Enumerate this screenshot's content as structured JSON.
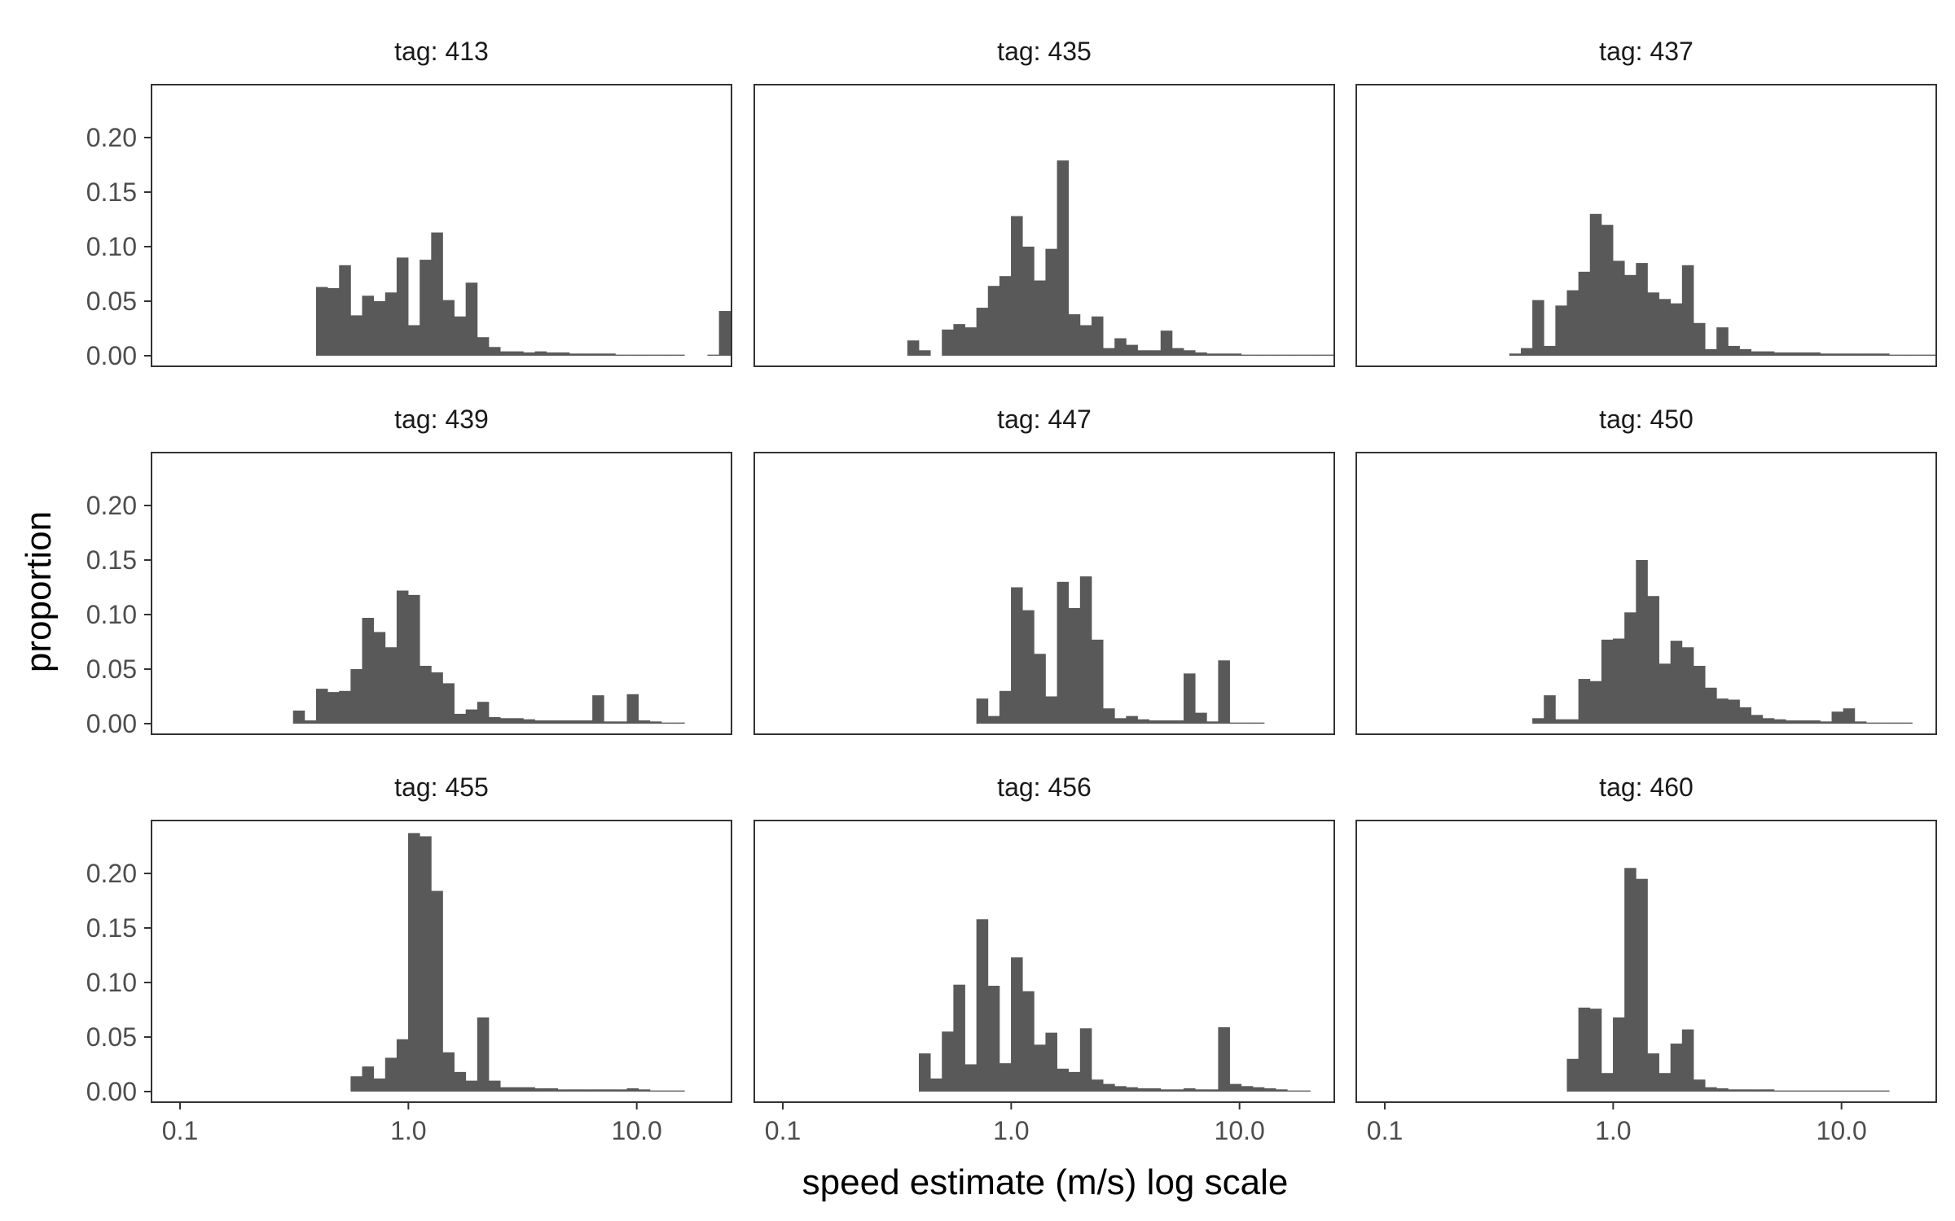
{
  "chart_data": {
    "type": "bar",
    "layout": "facet-grid-3x3",
    "xlabel": "speed estimate (m/s) log scale",
    "ylabel": "proportion",
    "x_scale": "log10",
    "xlim": [
      0.075,
      26
    ],
    "ylim": [
      0,
      0.25
    ],
    "x_ticks": [
      0.1,
      1.0,
      10.0
    ],
    "x_tick_labels": [
      "0.1",
      "1.0",
      "10.0"
    ],
    "y_ticks": [
      0,
      0.05,
      0.1,
      0.15,
      0.2
    ],
    "y_tick_labels": [
      "0.00",
      "0.05",
      "0.10",
      "0.15",
      "0.20"
    ],
    "bar_color": "#595959",
    "grid": false,
    "bin_count": 50,
    "bin_range": [
      0.0776,
      25.73
    ],
    "facets": [
      {
        "label": "tag: 413",
        "values": [
          0,
          0,
          0,
          0,
          0,
          0,
          0,
          0,
          0,
          0,
          0,
          0,
          0,
          0,
          0.063,
          0.062,
          0.083,
          0.037,
          0.055,
          0.05,
          0.058,
          0.09,
          0.028,
          0.088,
          0.113,
          0.051,
          0.036,
          0.067,
          0.017,
          0.008,
          0.004,
          0.004,
          0.003,
          0.004,
          0.003,
          0.003,
          0.002,
          0.002,
          0.002,
          0.002,
          0.001,
          0.001,
          0.001,
          0.001,
          0.001,
          0.001,
          0,
          0,
          0.001,
          0.041
        ]
      },
      {
        "label": "tag: 435",
        "values": [
          0,
          0,
          0,
          0,
          0,
          0,
          0,
          0,
          0,
          0,
          0,
          0,
          0,
          0.014,
          0.005,
          0,
          0.024,
          0.029,
          0.026,
          0.044,
          0.064,
          0.073,
          0.128,
          0.1,
          0.069,
          0.098,
          0.179,
          0.038,
          0.028,
          0.036,
          0.007,
          0.016,
          0.01,
          0.005,
          0.005,
          0.023,
          0.007,
          0.005,
          0.003,
          0.002,
          0.002,
          0.002,
          0.001,
          0.001,
          0.001,
          0.001,
          0.001,
          0.001,
          0.001,
          0.001
        ]
      },
      {
        "label": "tag: 437",
        "values": [
          0,
          0,
          0,
          0,
          0,
          0,
          0,
          0,
          0,
          0,
          0,
          0,
          0,
          0.002,
          0.007,
          0.051,
          0.009,
          0.046,
          0.06,
          0.077,
          0.13,
          0.12,
          0.087,
          0.074,
          0.085,
          0.058,
          0.052,
          0.048,
          0.083,
          0.03,
          0.006,
          0.026,
          0.009,
          0.006,
          0.004,
          0.004,
          0.003,
          0.003,
          0.003,
          0.003,
          0.002,
          0.002,
          0.002,
          0.002,
          0.002,
          0.002,
          0.001,
          0.001,
          0.001,
          0.001
        ]
      },
      {
        "label": "tag: 439",
        "values": [
          0,
          0,
          0,
          0,
          0,
          0,
          0,
          0,
          0,
          0,
          0,
          0,
          0.012,
          0.003,
          0.032,
          0.029,
          0.03,
          0.05,
          0.097,
          0.084,
          0.07,
          0.122,
          0.118,
          0.053,
          0.047,
          0.037,
          0.009,
          0.013,
          0.02,
          0.006,
          0.005,
          0.005,
          0.004,
          0.003,
          0.003,
          0.003,
          0.003,
          0.003,
          0.026,
          0.002,
          0.002,
          0.027,
          0.003,
          0.002,
          0.001,
          0.001,
          0,
          0,
          0,
          0
        ]
      },
      {
        "label": "tag: 447",
        "values": [
          0,
          0,
          0,
          0,
          0,
          0,
          0,
          0,
          0,
          0,
          0,
          0,
          0,
          0,
          0,
          0,
          0,
          0,
          0,
          0.023,
          0.007,
          0.03,
          0.125,
          0.104,
          0.064,
          0.025,
          0.13,
          0.106,
          0.135,
          0.077,
          0.014,
          0.005,
          0.007,
          0.004,
          0.003,
          0.003,
          0.003,
          0.046,
          0.01,
          0.002,
          0.058,
          0.001,
          0.001,
          0.001,
          0,
          0,
          0,
          0,
          0,
          0
        ]
      },
      {
        "label": "tag: 450",
        "values": [
          0,
          0,
          0,
          0,
          0,
          0,
          0,
          0,
          0,
          0,
          0,
          0,
          0,
          0,
          0,
          0.005,
          0.026,
          0.004,
          0.004,
          0.041,
          0.039,
          0.077,
          0.078,
          0.102,
          0.15,
          0.117,
          0.055,
          0.076,
          0.07,
          0.053,
          0.033,
          0.023,
          0.022,
          0.015,
          0.008,
          0.005,
          0.004,
          0.003,
          0.003,
          0.003,
          0.002,
          0.011,
          0.014,
          0.002,
          0.001,
          0.001,
          0.001,
          0.001,
          0,
          0
        ]
      },
      {
        "label": "tag: 455",
        "values": [
          0,
          0,
          0,
          0,
          0,
          0,
          0,
          0,
          0,
          0,
          0,
          0,
          0,
          0,
          0,
          0,
          0,
          0.014,
          0.023,
          0.012,
          0.031,
          0.048,
          0.237,
          0.234,
          0.184,
          0.036,
          0.018,
          0.01,
          0.068,
          0.01,
          0.004,
          0.004,
          0.004,
          0.003,
          0.003,
          0.002,
          0.002,
          0.002,
          0.002,
          0.002,
          0.002,
          0.003,
          0.002,
          0.001,
          0.001,
          0.001,
          0,
          0,
          0,
          0
        ]
      },
      {
        "label": "tag: 456",
        "values": [
          0,
          0,
          0,
          0,
          0,
          0,
          0,
          0,
          0,
          0,
          0,
          0,
          0,
          0,
          0.035,
          0.012,
          0.055,
          0.098,
          0.025,
          0.158,
          0.097,
          0.026,
          0.123,
          0.092,
          0.043,
          0.054,
          0.021,
          0.018,
          0.058,
          0.011,
          0.007,
          0.005,
          0.004,
          0.003,
          0.003,
          0.002,
          0.002,
          0.003,
          0.002,
          0.002,
          0.059,
          0.007,
          0.005,
          0.004,
          0.003,
          0.002,
          0.001,
          0.001,
          0,
          0
        ]
      },
      {
        "label": "tag: 460",
        "values": [
          0,
          0,
          0,
          0,
          0,
          0,
          0,
          0,
          0,
          0,
          0,
          0,
          0,
          0,
          0,
          0,
          0,
          0,
          0.03,
          0.077,
          0.076,
          0.017,
          0.068,
          0.205,
          0.195,
          0.035,
          0.017,
          0.044,
          0.057,
          0.011,
          0.004,
          0.003,
          0.002,
          0.002,
          0.002,
          0.002,
          0.001,
          0.001,
          0.001,
          0.001,
          0.001,
          0.001,
          0.001,
          0.001,
          0.001,
          0.001,
          0,
          0,
          0,
          0
        ]
      }
    ]
  }
}
